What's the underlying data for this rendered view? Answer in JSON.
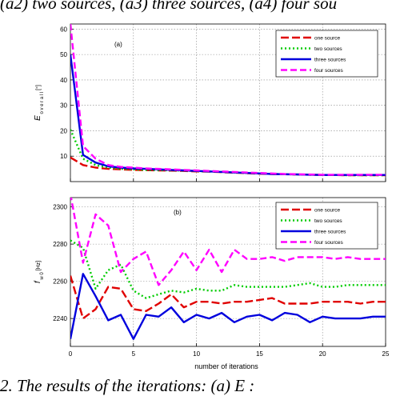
{
  "captions": {
    "top": "(a2) two sources, (a3) three sources, (a4) four sou",
    "bottom": "2. The results of the    iterations: (a) E       : "
  },
  "shared_x": {
    "label": "number of iterations",
    "range": [
      0,
      25
    ],
    "ticks": [
      0,
      5,
      10,
      15,
      20,
      25
    ]
  },
  "chart_data": [
    {
      "type": "line",
      "panel_label": "(a)",
      "ylabel_main": "E",
      "ylabel_sub": "o v e r a l l",
      "ylabel_unit": "[°]",
      "xlabel": "",
      "xlim": [
        0,
        25
      ],
      "ylim": [
        0,
        62
      ],
      "yticks": [
        10,
        20,
        30,
        40,
        50,
        60
      ],
      "grid": true,
      "legend_placement": "top-right",
      "x": [
        0,
        1,
        2,
        3,
        4,
        5,
        6,
        7,
        8,
        9,
        10,
        11,
        12,
        13,
        14,
        15,
        16,
        17,
        18,
        19,
        20,
        21,
        22,
        23,
        24,
        25
      ],
      "series": [
        {
          "name": "one source",
          "color": "#e00000",
          "dash": "10,4",
          "values": [
            9.5,
            6.5,
            5.5,
            5.0,
            4.8,
            4.6,
            4.5,
            4.4,
            4.3,
            4.2,
            4.0,
            3.9,
            3.7,
            3.5,
            3.3,
            3.1,
            3.0,
            2.9,
            2.8,
            2.7,
            2.6,
            2.6,
            2.5,
            2.5,
            2.5,
            2.5
          ]
        },
        {
          "name": "two sources",
          "color": "#00cc00",
          "dash": "2,3",
          "values": [
            20.5,
            9.0,
            6.5,
            5.5,
            5.0,
            4.8,
            4.6,
            4.5,
            4.4,
            4.3,
            4.1,
            4.0,
            3.8,
            3.6,
            3.4,
            3.2,
            3.0,
            2.9,
            2.8,
            2.7,
            2.6,
            2.6,
            2.5,
            2.5,
            2.5,
            2.5
          ]
        },
        {
          "name": "three sources",
          "color": "#0000dd",
          "dash": "",
          "values": [
            50.0,
            10.5,
            7.5,
            6.0,
            5.5,
            5.2,
            5.0,
            4.8,
            4.6,
            4.4,
            4.2,
            4.0,
            3.8,
            3.6,
            3.4,
            3.2,
            3.0,
            2.9,
            2.8,
            2.7,
            2.6,
            2.6,
            2.6,
            2.6,
            2.6,
            2.6
          ]
        },
        {
          "name": "four sources",
          "color": "#ff00ff",
          "dash": "8,4",
          "values": [
            62.0,
            14.0,
            9.0,
            6.5,
            5.8,
            5.5,
            5.2,
            5.0,
            4.8,
            4.6,
            4.4,
            4.2,
            4.0,
            3.8,
            3.6,
            3.4,
            3.2,
            3.0,
            2.9,
            2.8,
            2.7,
            2.7,
            2.7,
            2.7,
            2.7,
            2.7
          ]
        }
      ]
    },
    {
      "type": "line",
      "panel_label": "(b)",
      "ylabel_main": "f",
      "ylabel_sub": "w 0",
      "ylabel_unit": "[Hz]",
      "xlabel": "number of iterations",
      "xlim": [
        0,
        25
      ],
      "ylim": [
        2225,
        2305
      ],
      "yticks": [
        2240,
        2260,
        2280,
        2300
      ],
      "xticks": [
        0,
        5,
        10,
        15,
        20,
        25
      ],
      "grid": true,
      "legend_placement": "top-right",
      "x": [
        0,
        1,
        2,
        3,
        4,
        5,
        6,
        7,
        8,
        9,
        10,
        11,
        12,
        13,
        14,
        15,
        16,
        17,
        18,
        19,
        20,
        21,
        22,
        23,
        24,
        25
      ],
      "series": [
        {
          "name": "one source",
          "color": "#e00000",
          "dash": "10,4",
          "values": [
            2263,
            2240,
            2245,
            2257,
            2256,
            2245,
            2244,
            2248,
            2253,
            2246,
            2249,
            2249,
            2248,
            2249,
            2249,
            2250,
            2251,
            2248,
            2248,
            2248,
            2249,
            2249,
            2249,
            2248,
            2249,
            2249
          ]
        },
        {
          "name": "two sources",
          "color": "#00cc00",
          "dash": "2,3",
          "values": [
            2282,
            2278,
            2256,
            2266,
            2269,
            2255,
            2251,
            2253,
            2255,
            2254,
            2256,
            2255,
            2255,
            2258,
            2257,
            2257,
            2257,
            2257,
            2258,
            2259,
            2257,
            2257,
            2258,
            2258,
            2258,
            2258
          ]
        },
        {
          "name": "three sources",
          "color": "#0000dd",
          "dash": "",
          "values": [
            2229,
            2264,
            2252,
            2239,
            2242,
            2229,
            2242,
            2241,
            2246,
            2238,
            2242,
            2240,
            2243,
            2238,
            2241,
            2242,
            2239,
            2243,
            2242,
            2238,
            2241,
            2240,
            2240,
            2240,
            2241,
            2241
          ]
        },
        {
          "name": "four sources",
          "color": "#ff00ff",
          "dash": "8,4",
          "values": [
            2307,
            2270,
            2296,
            2290,
            2265,
            2272,
            2276,
            2258,
            2266,
            2276,
            2266,
            2277,
            2265,
            2277,
            2272,
            2272,
            2273,
            2271,
            2273,
            2273,
            2273,
            2272,
            2273,
            2272,
            2272,
            2272
          ]
        }
      ]
    }
  ]
}
